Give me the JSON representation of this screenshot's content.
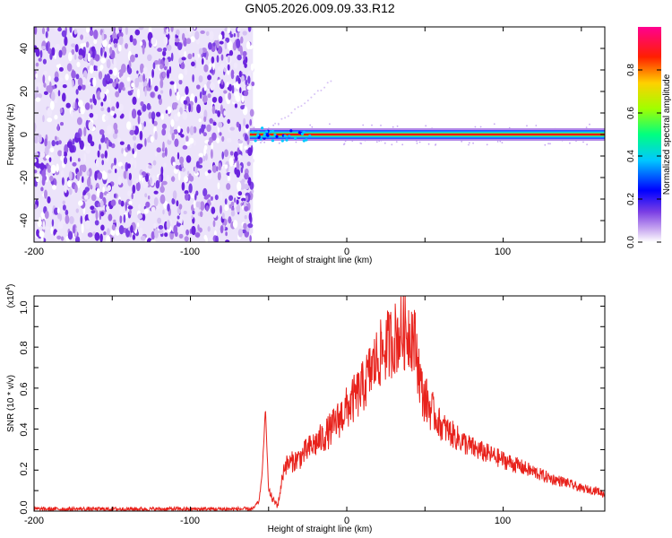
{
  "title": "GN05.2026.009.09.33.R12",
  "chart_data": [
    {
      "type": "heatmap",
      "title": "GN05.2026.009.09.33.R12",
      "xlabel": "Height of straight line (km)",
      "ylabel": "Frequency (Hz)",
      "xlim": [
        -200,
        165
      ],
      "ylim": [
        -50,
        50
      ],
      "xticks": [
        "-200",
        "-100",
        "0",
        "100"
      ],
      "yticks": [
        "-40",
        "-20",
        "0",
        "20",
        "40"
      ],
      "noise_region_x": [
        -200,
        -60
      ],
      "signal_band_hz": 0,
      "colormap": [
        "#ffffff",
        "#7b3fe4",
        "#0000ff",
        "#00c0ff",
        "#00ff80",
        "#c0ff00",
        "#ffc000",
        "#ff0000",
        "#ff0090"
      ],
      "colorbar": {
        "label": "Normalized spectral amplitude",
        "ticks": [
          "0.0",
          "0.2",
          "0.4",
          "0.6",
          "0.8"
        ],
        "range": [
          0,
          1
        ]
      },
      "grid": false,
      "legend": "none"
    },
    {
      "type": "line",
      "xlabel": "Height of straight line (km)",
      "ylabel": "SNR (10 * v/v)",
      "yscale_label": "(x10",
      "yscale_exp": "4",
      "yscale_close": ")",
      "xlim": [
        -200,
        165
      ],
      "ylim": [
        0,
        1.05
      ],
      "xticks": [
        "-200",
        "-100",
        "0",
        "100"
      ],
      "yticks": [
        "0.0",
        "0.2",
        "0.4",
        "0.6",
        "0.8",
        "1.0"
      ],
      "color": "#e8221c",
      "x": [
        -200,
        -150,
        -100,
        -70,
        -60,
        -56,
        -54,
        -52,
        -50,
        -47,
        -44,
        -40,
        -35,
        -30,
        -25,
        -20,
        -15,
        -10,
        -5,
        0,
        5,
        10,
        15,
        20,
        25,
        30,
        35,
        40,
        42,
        44,
        46,
        48,
        50,
        55,
        60,
        70,
        80,
        90,
        100,
        110,
        120,
        130,
        140,
        150,
        160,
        165
      ],
      "y": [
        0.01,
        0.01,
        0.01,
        0.01,
        0.01,
        0.05,
        0.2,
        0.5,
        0.1,
        0.05,
        0.03,
        0.22,
        0.24,
        0.26,
        0.3,
        0.33,
        0.36,
        0.4,
        0.45,
        0.5,
        0.55,
        0.6,
        0.68,
        0.75,
        0.8,
        0.84,
        0.87,
        0.88,
        0.87,
        0.8,
        0.7,
        0.58,
        0.55,
        0.48,
        0.42,
        0.36,
        0.31,
        0.28,
        0.25,
        0.22,
        0.19,
        0.16,
        0.14,
        0.11,
        0.1,
        0.08
      ],
      "grid": false,
      "legend": "none"
    }
  ]
}
